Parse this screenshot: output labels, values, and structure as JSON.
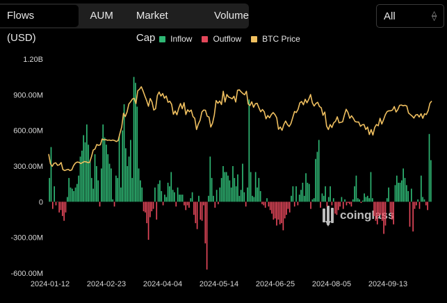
{
  "tabs": [
    "Flows (USD)",
    "AUM",
    "Market Cap",
    "Volume"
  ],
  "select": {
    "value": "All"
  },
  "watermark": "coinglass",
  "colors": {
    "inflow": "#2fb774",
    "outflow": "#e3475a",
    "btc": "#f0c060"
  },
  "chart_data": {
    "type": "bar",
    "title": "",
    "legend": {
      "placement": "top-center",
      "entries": [
        "Inflow",
        "Outflow",
        "BTC Price"
      ]
    },
    "ylim": [
      -600000000,
      1200000000
    ],
    "yticks": [
      1200000000,
      900000000,
      600000000,
      300000000,
      0,
      -300000000,
      -600000000
    ],
    "ytick_labels": [
      "1.20B",
      "900.00M",
      "600.00M",
      "300.00M",
      "0",
      "-300.00M",
      "-600.00M"
    ],
    "xtick_labels": [
      "2024-01-12",
      "2024-02-23",
      "2024-04-04",
      "2024-05-14",
      "2024-06-25",
      "2024-08-05",
      "2024-09-13"
    ],
    "grid": false,
    "series": [
      {
        "name": "Flows",
        "values": [
          200,
          460,
          -60,
          130,
          -30,
          0,
          -90,
          -70,
          -120,
          -160,
          -90,
          40,
          200,
          120,
          110,
          90,
          120,
          150,
          220,
          380,
          430,
          560,
          500,
          650,
          480,
          350,
          200,
          110,
          400,
          300,
          180,
          -40,
          280,
          650,
          540,
          480,
          400,
          320,
          280,
          20,
          -40,
          220,
          200,
          550,
          120,
          600,
          820,
          450,
          300,
          380,
          520,
          200,
          1050,
          1000,
          800,
          280,
          180,
          120,
          -80,
          -90,
          -180,
          -320,
          -130,
          -80,
          -60,
          120,
          -150,
          150,
          180,
          90,
          -30,
          60,
          40,
          160,
          130,
          250,
          100,
          80,
          -40,
          120,
          60,
          60,
          60,
          -30,
          -70,
          -30,
          -50,
          30,
          80,
          -110,
          -180,
          -230,
          50,
          -150,
          -160,
          -30,
          -350,
          -570,
          50,
          380,
          200,
          50,
          -50,
          100,
          -20,
          120,
          200,
          300,
          250,
          250,
          220,
          180,
          120,
          300,
          200,
          130,
          230,
          50,
          100,
          320,
          80,
          -40,
          120,
          860,
          250,
          50,
          40,
          250,
          120,
          200,
          90,
          -20,
          -30,
          -50,
          30,
          -40,
          -70,
          -100,
          -150,
          -140,
          -200,
          -150,
          -190,
          -180,
          -240,
          -140,
          -110,
          -60,
          -90,
          50,
          130,
          -40,
          130,
          -30,
          60,
          100,
          160,
          50,
          240,
          160,
          150,
          -60,
          20,
          30,
          360,
          420,
          520,
          -50,
          70,
          50,
          130,
          -40,
          40,
          130,
          -30,
          30,
          -100,
          -110,
          -70,
          -40,
          40,
          -60,
          20,
          -30,
          -10,
          -20,
          -40,
          20,
          130,
          220,
          30,
          20,
          -10,
          10,
          70,
          40,
          50,
          30,
          250,
          30,
          -120,
          -160,
          -190,
          -120,
          -110,
          -160,
          -270,
          -200,
          30,
          120,
          -90,
          -150,
          -190,
          140,
          220,
          160,
          160,
          180,
          280,
          200,
          140,
          90,
          -210,
          110,
          -250,
          -60,
          -30,
          20,
          -60,
          220,
          40,
          20,
          -30,
          -70,
          570,
          350
        ]
      },
      {
        "name": "BTC Price",
        "values": [
          46.2,
          42.3,
          41.3,
          42.5,
          42.7,
          41.7,
          41.9,
          42.8,
          40.0,
          39.6,
          39.9,
          40.1,
          39.6,
          39.9,
          41.6,
          42.6,
          43.0,
          42.9,
          42.4,
          42.8,
          43.2,
          43.1,
          42.8,
          42.9,
          45.1,
          47.8,
          48.2,
          50.0,
          49.7,
          49.9,
          52.2,
          51.9,
          52.0,
          51.7,
          51.8,
          51.6,
          51.8,
          51.6,
          51.2,
          51.6,
          54.5,
          57.0,
          62.5,
          61.2,
          63.0,
          66.2,
          67.1,
          68.2,
          68.5,
          66.4,
          71.5,
          72.1,
          73.1,
          71.4,
          69.4,
          67.6,
          65.3,
          68.4,
          67.0,
          63.8,
          64.3,
          69.6,
          71.0,
          69.4,
          70.4,
          68.5,
          69.4,
          66.9,
          67.3,
          66.1,
          62.1,
          63.4,
          61.9,
          64.5,
          66.4,
          64.3,
          66.7,
          62.0,
          63.9,
          63.1,
          63.8,
          61.2,
          60.5,
          56.0,
          58.2,
          59.7,
          63.0,
          63.8,
          63.7,
          61.3,
          61.0,
          57.0,
          58.6,
          61.9,
          67.6,
          66.5,
          67.4,
          66.0,
          71.3,
          67.0,
          70.0,
          69.0,
          68.7,
          68.3,
          69.3,
          67.0,
          71.7,
          71.9,
          71.1,
          70.4,
          69.9,
          71.3,
          66.2,
          65.6,
          67.1,
          64.9,
          66.3,
          66.5,
          64.7,
          63.1,
          64.0,
          63.1,
          60.3,
          61.6,
          60.7,
          62.0,
          62.8,
          62.0,
          60.7,
          56.1,
          57.0,
          55.7,
          58.0,
          59.4,
          58.0,
          57.2,
          58.4,
          60.8,
          63.2,
          62.8,
          64.1,
          66.7,
          67.2,
          65.9,
          68.1,
          66.7,
          68.1,
          70.0,
          66.7,
          65.4,
          66.4,
          66.9,
          65.2,
          64.7,
          61.7,
          63.0,
          57.4,
          56.0,
          58.0,
          56.8,
          58.7,
          59.3,
          61.1,
          58.7,
          58.9,
          59.1,
          61.8,
          64.1,
          62.8,
          60.5,
          61.5,
          60.5,
          59.2,
          59.0,
          59.0,
          57.3,
          57.9,
          58.0,
          56.0,
          57.0,
          54.0,
          56.0,
          53.8,
          56.8,
          58.0,
          57.5,
          60.5,
          58.2,
          60.0,
          62.0,
          63.2,
          63.5,
          63.5,
          63.8,
          65.2,
          63.0,
          64.0,
          65.7,
          65.8,
          65.5,
          65.7,
          65.4,
          62.6,
          62.0,
          61.4,
          60.6,
          61.8,
          62.0,
          61.0,
          62.3,
          60.5,
          62.3,
          62.0,
          63.5,
          66.5,
          67.4
        ]
      }
    ]
  }
}
